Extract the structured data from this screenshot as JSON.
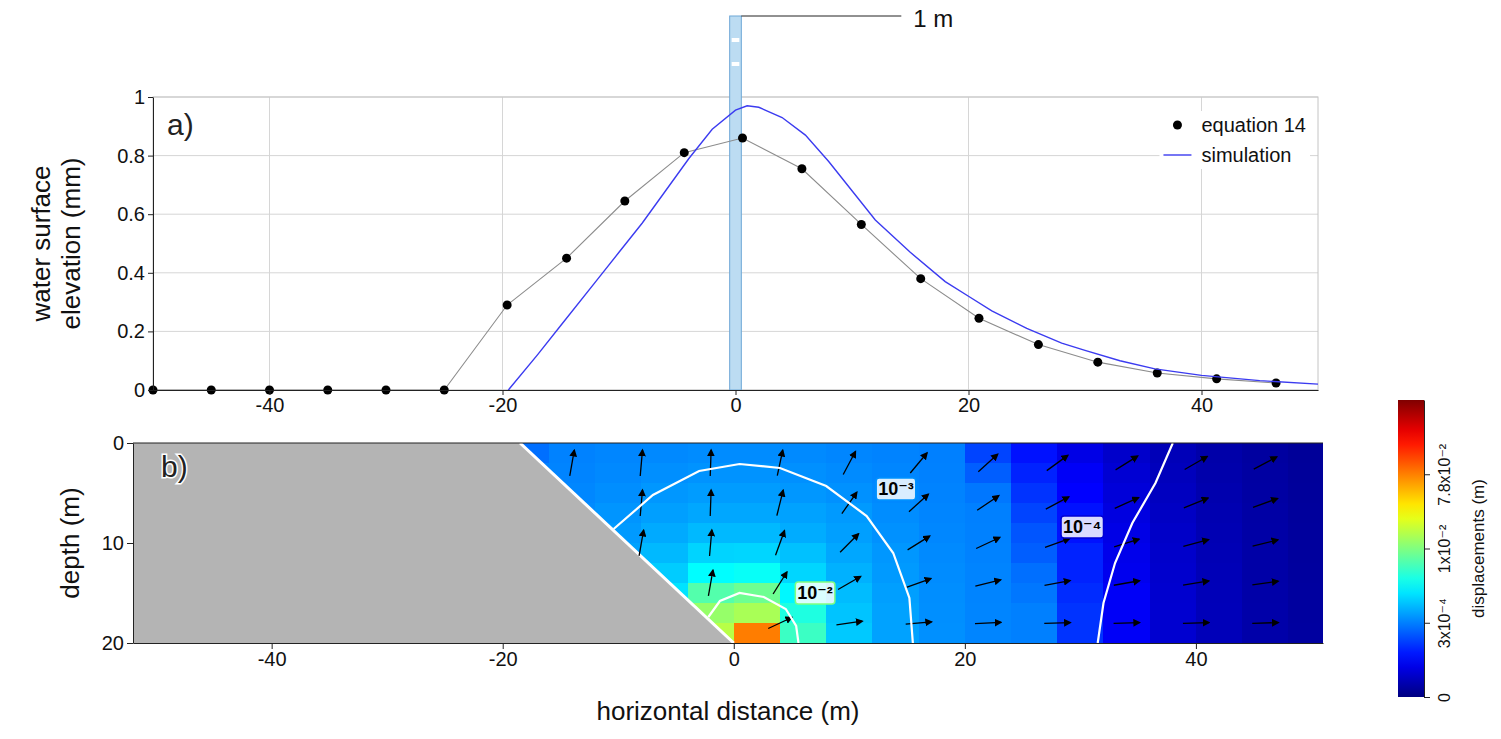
{
  "chart_data": [
    {
      "type": "line",
      "panel_label": "a)",
      "ylabel": "water surface elevation (mm)",
      "xlim": [
        -50,
        50
      ],
      "xticks": [
        -40,
        -20,
        0,
        20,
        40
      ],
      "ylim": [
        0,
        1
      ],
      "yticks": [
        0,
        0.2,
        0.4,
        0.6,
        0.8,
        1
      ],
      "grid": true,
      "legend": "upper right",
      "series": [
        {
          "name": "equation 14",
          "type": "scatter",
          "color": "#000000",
          "marker": "circle",
          "line_style": "solid",
          "x": [
            -50,
            -45,
            -40,
            -35,
            -30,
            -25,
            -19.6,
            -14.5,
            -9.5,
            -4.4,
            0.6,
            5.7,
            10.8,
            15.9,
            20.9,
            26,
            31.1,
            36.2,
            41.3,
            46.4
          ],
          "values": [
            0,
            0,
            0,
            0,
            0,
            0,
            0.29,
            0.45,
            0.645,
            0.81,
            0.86,
            0.755,
            0.565,
            0.38,
            0.245,
            0.155,
            0.095,
            0.058,
            0.038,
            0.024
          ]
        },
        {
          "name": "simulation",
          "type": "line",
          "color": "#3b3bf0",
          "x": [
            -19.5,
            -17,
            -15,
            -12,
            -10,
            -8,
            -6,
            -4,
            -2,
            0,
            1,
            2,
            4,
            6,
            8,
            10,
            12,
            15,
            18,
            20,
            22,
            25,
            28,
            30,
            33,
            36,
            40,
            45,
            50
          ],
          "values": [
            0,
            0.12,
            0.22,
            0.37,
            0.47,
            0.57,
            0.68,
            0.79,
            0.89,
            0.955,
            0.97,
            0.965,
            0.93,
            0.87,
            0.78,
            0.68,
            0.58,
            0.47,
            0.37,
            0.32,
            0.27,
            0.21,
            0.16,
            0.135,
            0.1,
            0.072,
            0.05,
            0.032,
            0.02
          ]
        }
      ],
      "annotations": [
        {
          "text": "1 m",
          "x": [
            -0.5,
            0.5
          ]
        }
      ]
    },
    {
      "type": "heatmap",
      "panel_label": "b)",
      "xlabel": "horizontal distance (m)",
      "ylabel": "depth (m)",
      "xlim": [
        -52,
        51
      ],
      "xticks": [
        -40,
        -20,
        0,
        20,
        40
      ],
      "ylim": [
        20,
        0
      ],
      "yticks": [
        0,
        10,
        20
      ],
      "cells": {
        "x": [
          -18,
          -14,
          -10,
          -6,
          -2,
          2,
          6,
          10,
          14,
          18,
          22,
          26,
          30,
          34,
          38,
          42,
          46,
          50
        ],
        "depth": [
          1,
          3,
          5,
          7,
          9,
          11,
          13,
          15,
          17,
          19
        ],
        "values": [
          [
            0.00028,
            0.00039,
            0.00053,
            0.00068,
            0.00078,
            0.00078,
            0.00071,
            0.00056,
            0.00043,
            0.0003,
            0.00023,
            0.00017,
            0.00012,
            8.9e-05,
            6.6e-05,
            4.9e-05,
            3.8e-05,
            3e-05
          ],
          [
            0.00032,
            0.00048,
            0.00068,
            0.00089,
            0.00105,
            0.00105,
            0.00093,
            0.00074,
            0.00053,
            0.00036,
            0.00026,
            0.00019,
            0.00014,
            9.8e-05,
            7.1e-05,
            5.1e-05,
            4e-05,
            3.1e-05
          ],
          [
            null,
            0.00059,
            0.00087,
            0.0012,
            0.0014,
            0.0014,
            0.0012,
            0.00095,
            0.00065,
            0.00044,
            0.00029,
            0.00021,
            0.00015,
            0.000105,
            7.6e-05,
            5.5e-05,
            4.2e-05,
            3.2e-05
          ],
          [
            null,
            0.00072,
            0.0011,
            0.0015,
            0.0018,
            0.0018,
            0.0016,
            0.0013,
            0.00081,
            0.00051,
            0.00032,
            0.00023,
            0.00017,
            0.000114,
            8e-05,
            5.8e-05,
            4.4e-05,
            3.4e-05
          ],
          [
            null,
            null,
            0.0013,
            0.0019,
            0.0025,
            0.0025,
            0.002,
            0.0015,
            0.00098,
            0.0006,
            0.00037,
            0.00025,
            0.00017,
            0.00012,
            8.5e-05,
            6e-05,
            4.5e-05,
            3.5e-05
          ],
          [
            null,
            null,
            0.0016,
            0.0025,
            0.0035,
            0.0036,
            0.0028,
            0.0018,
            0.0012,
            0.00069,
            0.00041,
            0.00026,
            0.00019,
            0.000126,
            8.9e-05,
            6.3e-05,
            4.6e-05,
            3.5e-05
          ],
          [
            null,
            null,
            null,
            0.0032,
            0.0051,
            0.0054,
            0.0036,
            0.0022,
            0.0013,
            0.00078,
            0.00046,
            0.00028,
            0.00019,
            0.00013,
            9.1e-05,
            6.5e-05,
            4.7e-05,
            3.6e-05
          ],
          [
            null,
            null,
            null,
            0.0041,
            0.0083,
            0.0093,
            0.0049,
            0.0026,
            0.0015,
            0.00085,
            0.00048,
            0.00029,
            0.0002,
            0.00014,
            9.3e-05,
            6.6e-05,
            4.8e-05,
            3.7e-05
          ],
          [
            null,
            null,
            null,
            null,
            0.016,
            0.021,
            0.0063,
            0.0029,
            0.0016,
            0.00089,
            0.0005,
            0.0003,
            0.00021,
            0.00014,
            9.5e-05,
            6.8e-05,
            4.9e-05,
            3.7e-05
          ],
          [
            null,
            null,
            null,
            null,
            0.025,
            0.08,
            0.0074,
            0.0031,
            0.0016,
            0.00093,
            0.00051,
            0.0003,
            0.00021,
            0.00014,
            9.5e-05,
            6.8e-05,
            4.9e-05,
            3.8e-05
          ]
        ]
      },
      "colorbar": {
        "label": "displacements (m)",
        "range": [
          0,
          0.3
        ],
        "ticks": [
          0,
          {
            "value": 0.0003,
            "label": "3x10⁻⁴"
          },
          {
            "value": 0.01,
            "label": "1x10⁻²"
          },
          {
            "value": 0.078,
            "label": "7.8x10⁻²"
          }
        ]
      },
      "slope": {
        "x": [
          -18.5,
          0
        ],
        "depth": [
          0,
          20
        ]
      },
      "contours": [
        {
          "level": 0.01,
          "label": "10⁻²",
          "x": [
            -2.2,
            -1.2,
            0.5,
            2.6,
            4.5,
            5.4,
            5.6
          ],
          "depth": [
            17.4,
            15.8,
            15,
            15.4,
            16.6,
            18.3,
            20
          ],
          "label_at": [
            5.5,
            15.6
          ]
        },
        {
          "level": 0.001,
          "label": "10⁻³",
          "x": [
            -10.4,
            -7,
            -3,
            0.5,
            4,
            8,
            11.5,
            13.8,
            15.2,
            15.5
          ],
          "depth": [
            8.6,
            5.2,
            2.8,
            2.1,
            2.5,
            4.3,
            7.3,
            11,
            15.5,
            20
          ],
          "label_at": [
            12.5,
            5.2
          ]
        },
        {
          "level": 0.0001,
          "label": "10⁻⁴",
          "x": [
            38,
            36.5,
            34.5,
            33,
            32,
            31.5
          ],
          "depth": [
            0,
            4,
            8,
            12,
            16,
            20
          ],
          "label_at": [
            28.5,
            9
          ]
        }
      ],
      "vectors": {
        "x": [
          -14,
          -8,
          -2,
          4,
          10,
          16,
          22,
          28,
          34,
          40,
          46,
          -8,
          -2,
          4,
          10,
          16,
          22,
          28,
          34,
          40,
          46,
          -8,
          -2,
          4,
          10,
          16,
          22,
          28,
          34,
          40,
          46,
          -2,
          4,
          10,
          16,
          22,
          28,
          34,
          40,
          46,
          4,
          10,
          16,
          22,
          28,
          34,
          40,
          46
        ],
        "depth": [
          2,
          2,
          2,
          2,
          2,
          2,
          2,
          2,
          2,
          2,
          2,
          6,
          6,
          6,
          6,
          6,
          6,
          6,
          6,
          6,
          6,
          10,
          10,
          10,
          10,
          10,
          10,
          10,
          10,
          10,
          10,
          14,
          14,
          14,
          14,
          14,
          14,
          14,
          14,
          14,
          18,
          18,
          18,
          18,
          18,
          18,
          18,
          18
        ],
        "direction": [
          80,
          85,
          88,
          78,
          62,
          50,
          42,
          36,
          32,
          30,
          28,
          85,
          88,
          76,
          55,
          42,
          34,
          28,
          24,
          22,
          20,
          80,
          85,
          70,
          45,
          32,
          25,
          20,
          17,
          15,
          14,
          80,
          58,
          30,
          20,
          14,
          11,
          10,
          9,
          8,
          25,
          8,
          5,
          3,
          2,
          2,
          2,
          2
        ]
      }
    }
  ]
}
